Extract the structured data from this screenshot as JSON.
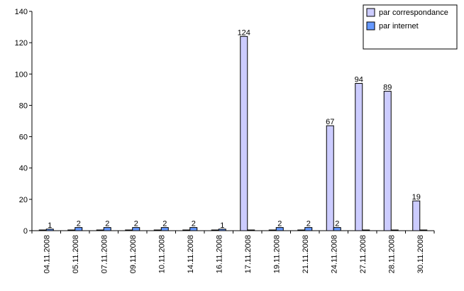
{
  "chart_data": {
    "type": "bar",
    "title": "",
    "xlabel": "",
    "ylabel": "",
    "ylim": [
      0,
      140
    ],
    "yticks": [
      "0",
      "20",
      "40",
      "60",
      "80",
      "100",
      "120",
      "140"
    ],
    "categories": [
      "04.11.2008",
      "05.11.2008",
      "07.11.2008",
      "09.11.2008",
      "10.11.2008",
      "14.11.2008",
      "16.11.2008",
      "17.11.2008",
      "19.11.2008",
      "21.11.2008",
      "24.11.2008",
      "27.11.2008",
      "28.11.2008",
      "30.11.2008"
    ],
    "legend_position": "top-right",
    "grid": false,
    "series": [
      {
        "name": "par correspondance",
        "color": "#ccccff",
        "values": [
          0,
          0,
          0,
          0,
          0,
          0,
          0,
          124,
          0,
          0,
          67,
          94,
          89,
          19
        ],
        "labels": [
          "",
          "",
          "",
          "",
          "",
          "",
          "",
          "124",
          "",
          "",
          "67",
          "94",
          "89",
          "19"
        ]
      },
      {
        "name": "par internet",
        "color": "#6699ff",
        "values": [
          1,
          2,
          2,
          2,
          2,
          2,
          1,
          0,
          2,
          2,
          2,
          0,
          0,
          0
        ],
        "labels": [
          "1",
          "2",
          "2",
          "2",
          "2",
          "2",
          "1",
          "",
          "2",
          "2",
          "2",
          "",
          "",
          ""
        ]
      }
    ]
  }
}
